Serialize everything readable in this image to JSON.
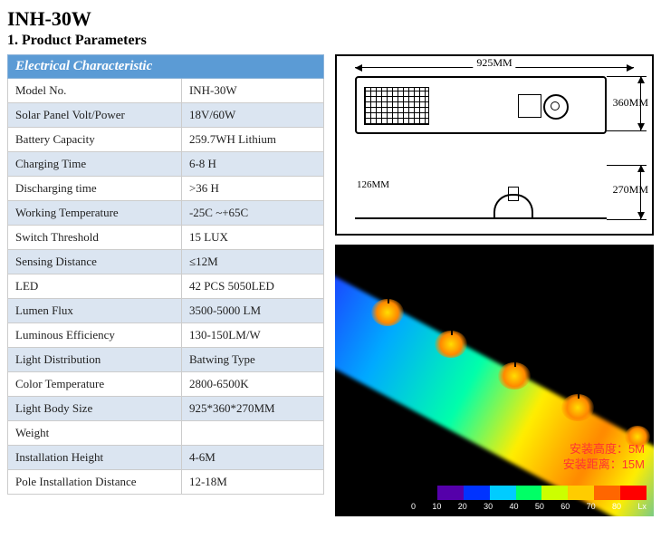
{
  "title": "INH-30W",
  "subtitle": "1. Product Parameters",
  "table": {
    "header": "Electrical Characteristic",
    "rows": [
      {
        "label": "Model No.",
        "value": "INH-30W"
      },
      {
        "label": "Solar Panel Volt/Power",
        "value": "18V/60W"
      },
      {
        "label": "Battery Capacity",
        "value": "259.7WH Lithium"
      },
      {
        "label": "Charging Time",
        "value": "6-8 H"
      },
      {
        "label": "Discharging time",
        "value": ">36 H"
      },
      {
        "label": "Working Temperature",
        "value": "-25C ~+65C"
      },
      {
        "label": "Switch Threshold",
        "value": "15 LUX"
      },
      {
        "label": "Sensing Distance",
        "value": "≤12M"
      },
      {
        "label": "LED",
        "value": "42 PCS 5050LED"
      },
      {
        "label": "Lumen Flux",
        "value": "3500-5000 LM"
      },
      {
        "label": "Luminous Efficiency",
        "value": "130-150LM/W"
      },
      {
        "label": "Light Distribution",
        "value": "Batwing Type"
      },
      {
        "label": "Color Temperature",
        "value": "2800-6500K"
      },
      {
        "label": "Light Body Size",
        "value": "925*360*270MM"
      },
      {
        "label": "Weight",
        "value": ""
      },
      {
        "label": "Installation Height",
        "value": "4-6M"
      },
      {
        "label": "Pole Installation Distance",
        "value": "12-18M"
      }
    ]
  },
  "dims": {
    "width": "925MM",
    "height": "360MM",
    "depth": "270MM",
    "thin": "126MM"
  },
  "sim": {
    "line1": "安装高度：5M",
    "line2": "安装距离：15M",
    "legend_ticks": [
      "0",
      "10",
      "20",
      "30",
      "40",
      "50",
      "60",
      "70",
      "80"
    ],
    "legend_unit": "Lx",
    "legend_colors": [
      "#000000",
      "#5500aa",
      "#0033ff",
      "#00ccff",
      "#00ff66",
      "#ccff00",
      "#ffcc00",
      "#ff6600",
      "#ff0000"
    ]
  }
}
